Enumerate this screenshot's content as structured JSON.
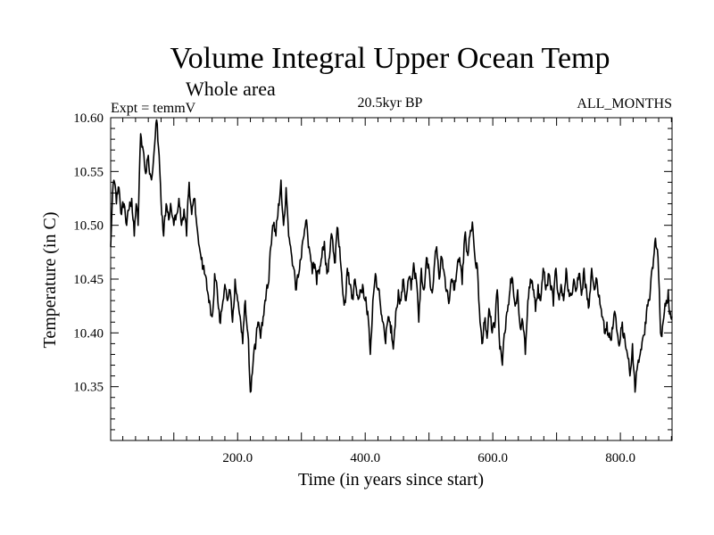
{
  "chart_data": {
    "type": "line",
    "title": "Volume Integral Upper Ocean Temp",
    "subtitle": "Whole area",
    "annotations": {
      "left": "Expt = temmV",
      "center": "20.5kyr BP",
      "right": "ALL_MONTHS"
    },
    "xlabel": "Time (in years since start)",
    "ylabel": "Temperature (in C)",
    "xlim": [
      1,
      881
    ],
    "ylim": [
      10.3,
      10.6
    ],
    "x_ticks": [
      200,
      400,
      600,
      800
    ],
    "x_tick_labels": [
      "200.0",
      "400.0",
      "600.0",
      "800.0"
    ],
    "y_ticks": [
      10.35,
      10.4,
      10.45,
      10.5,
      10.55,
      10.6
    ],
    "y_tick_labels": [
      "10.35",
      "10.40",
      "10.45",
      "10.50",
      "10.55",
      "10.60"
    ],
    "grid": false,
    "series": [
      {
        "name": "Volume Integral Upper Ocean Temp",
        "x_start": 1,
        "x_step": 1,
        "anchors": [
          [
            1,
            10.48
          ],
          [
            4,
            10.53
          ],
          [
            7,
            10.54
          ],
          [
            10,
            10.52
          ],
          [
            14,
            10.535
          ],
          [
            18,
            10.51
          ],
          [
            22,
            10.52
          ],
          [
            26,
            10.5
          ],
          [
            30,
            10.515
          ],
          [
            34,
            10.525
          ],
          [
            38,
            10.49
          ],
          [
            41,
            10.52
          ],
          [
            44,
            10.5
          ],
          [
            48,
            10.585
          ],
          [
            52,
            10.57
          ],
          [
            56,
            10.548
          ],
          [
            60,
            10.565
          ],
          [
            64,
            10.545
          ],
          [
            68,
            10.56
          ],
          [
            73,
            10.598
          ],
          [
            77,
            10.565
          ],
          [
            81,
            10.51
          ],
          [
            84,
            10.49
          ],
          [
            88,
            10.52
          ],
          [
            92,
            10.505
          ],
          [
            96,
            10.515
          ],
          [
            100,
            10.5
          ],
          [
            104,
            10.51
          ],
          [
            108,
            10.525
          ],
          [
            112,
            10.5
          ],
          [
            116,
            10.515
          ],
          [
            120,
            10.49
          ],
          [
            124,
            10.54
          ],
          [
            128,
            10.51
          ],
          [
            132,
            10.525
          ],
          [
            136,
            10.5
          ],
          [
            140,
            10.48
          ],
          [
            144,
            10.47
          ],
          [
            148,
            10.455
          ],
          [
            152,
            10.44
          ],
          [
            156,
            10.43
          ],
          [
            160,
            10.415
          ],
          [
            164,
            10.455
          ],
          [
            168,
            10.44
          ],
          [
            172,
            10.41
          ],
          [
            176,
            10.425
          ],
          [
            180,
            10.445
          ],
          [
            184,
            10.43
          ],
          [
            188,
            10.44
          ],
          [
            192,
            10.41
          ],
          [
            196,
            10.45
          ],
          [
            200,
            10.43
          ],
          [
            204,
            10.415
          ],
          [
            208,
            10.39
          ],
          [
            212,
            10.43
          ],
          [
            216,
            10.4
          ],
          [
            220,
            10.345
          ],
          [
            224,
            10.37
          ],
          [
            228,
            10.385
          ],
          [
            232,
            10.41
          ],
          [
            236,
            10.395
          ],
          [
            240,
            10.415
          ],
          [
            244,
            10.43
          ],
          [
            248,
            10.445
          ],
          [
            252,
            10.48
          ],
          [
            256,
            10.5
          ],
          [
            260,
            10.49
          ],
          [
            264,
            10.52
          ],
          [
            268,
            10.542
          ],
          [
            272,
            10.5
          ],
          [
            276,
            10.535
          ],
          [
            280,
            10.49
          ],
          [
            284,
            10.475
          ],
          [
            288,
            10.46
          ],
          [
            292,
            10.44
          ],
          [
            296,
            10.455
          ],
          [
            300,
            10.47
          ],
          [
            304,
            10.49
          ],
          [
            308,
            10.505
          ],
          [
            312,
            10.48
          ],
          [
            316,
            10.465
          ],
          [
            320,
            10.46
          ],
          [
            324,
            10.445
          ],
          [
            328,
            10.455
          ],
          [
            332,
            10.47
          ],
          [
            336,
            10.485
          ],
          [
            340,
            10.455
          ],
          [
            344,
            10.47
          ],
          [
            348,
            10.49
          ],
          [
            352,
            10.465
          ],
          [
            356,
            10.498
          ],
          [
            360,
            10.48
          ],
          [
            364,
            10.445
          ],
          [
            368,
            10.43
          ],
          [
            372,
            10.46
          ],
          [
            376,
            10.445
          ],
          [
            380,
            10.435
          ],
          [
            384,
            10.45
          ],
          [
            388,
            10.435
          ],
          [
            392,
            10.44
          ],
          [
            396,
            10.445
          ],
          [
            400,
            10.43
          ],
          [
            404,
            10.42
          ],
          [
            408,
            10.38
          ],
          [
            412,
            10.43
          ],
          [
            416,
            10.455
          ],
          [
            420,
            10.44
          ],
          [
            424,
            10.425
          ],
          [
            428,
            10.41
          ],
          [
            432,
            10.39
          ],
          [
            436,
            10.415
          ],
          [
            440,
            10.4
          ],
          [
            444,
            10.385
          ],
          [
            448,
            10.42
          ],
          [
            452,
            10.44
          ],
          [
            456,
            10.43
          ],
          [
            460,
            10.45
          ],
          [
            464,
            10.43
          ],
          [
            468,
            10.45
          ],
          [
            472,
            10.44
          ],
          [
            476,
            10.465
          ],
          [
            480,
            10.45
          ],
          [
            484,
            10.41
          ],
          [
            488,
            10.46
          ],
          [
            492,
            10.44
          ],
          [
            496,
            10.47
          ],
          [
            500,
            10.46
          ],
          [
            504,
            10.44
          ],
          [
            508,
            10.46
          ],
          [
            512,
            10.48
          ],
          [
            516,
            10.45
          ],
          [
            520,
            10.47
          ],
          [
            524,
            10.455
          ],
          [
            528,
            10.44
          ],
          [
            532,
            10.43
          ],
          [
            536,
            10.45
          ],
          [
            540,
            10.44
          ],
          [
            544,
            10.46
          ],
          [
            548,
            10.47
          ],
          [
            552,
            10.445
          ],
          [
            556,
            10.49
          ],
          [
            560,
            10.475
          ],
          [
            564,
            10.49
          ],
          [
            568,
            10.503
          ],
          [
            572,
            10.47
          ],
          [
            576,
            10.46
          ],
          [
            580,
            10.41
          ],
          [
            583,
            10.39
          ],
          [
            587,
            10.41
          ],
          [
            591,
            10.395
          ],
          [
            595,
            10.42
          ],
          [
            599,
            10.4
          ],
          [
            603,
            10.405
          ],
          [
            607,
            10.44
          ],
          [
            611,
            10.385
          ],
          [
            615,
            10.37
          ],
          [
            619,
            10.4
          ],
          [
            623,
            10.42
          ],
          [
            627,
            10.44
          ],
          [
            631,
            10.45
          ],
          [
            635,
            10.425
          ],
          [
            639,
            10.44
          ],
          [
            643,
            10.405
          ],
          [
            647,
            10.41
          ],
          [
            651,
            10.38
          ],
          [
            655,
            10.43
          ],
          [
            659,
            10.45
          ],
          [
            663,
            10.44
          ],
          [
            667,
            10.42
          ],
          [
            671,
            10.445
          ],
          [
            675,
            10.43
          ],
          [
            679,
            10.46
          ],
          [
            683,
            10.44
          ],
          [
            687,
            10.455
          ],
          [
            691,
            10.44
          ],
          [
            695,
            10.425
          ],
          [
            699,
            10.46
          ],
          [
            703,
            10.435
          ],
          [
            707,
            10.445
          ],
          [
            711,
            10.43
          ],
          [
            715,
            10.46
          ],
          [
            719,
            10.44
          ],
          [
            723,
            10.435
          ],
          [
            727,
            10.45
          ],
          [
            731,
            10.44
          ],
          [
            735,
            10.455
          ],
          [
            739,
            10.435
          ],
          [
            743,
            10.46
          ],
          [
            747,
            10.44
          ],
          [
            751,
            10.425
          ],
          [
            755,
            10.46
          ],
          [
            759,
            10.44
          ],
          [
            763,
            10.45
          ],
          [
            767,
            10.435
          ],
          [
            771,
            10.415
          ],
          [
            775,
            10.4
          ],
          [
            779,
            10.41
          ],
          [
            783,
            10.4
          ],
          [
            787,
            10.405
          ],
          [
            791,
            10.42
          ],
          [
            795,
            10.4
          ],
          [
            799,
            10.39
          ],
          [
            803,
            10.41
          ],
          [
            807,
            10.395
          ],
          [
            811,
            10.38
          ],
          [
            815,
            10.36
          ],
          [
            819,
            10.39
          ],
          [
            823,
            10.345
          ],
          [
            827,
            10.37
          ],
          [
            831,
            10.38
          ],
          [
            835,
            10.395
          ],
          [
            839,
            10.41
          ],
          [
            843,
            10.425
          ],
          [
            847,
            10.44
          ],
          [
            851,
            10.46
          ],
          [
            855,
            10.488
          ],
          [
            859,
            10.47
          ],
          [
            863,
            10.4
          ],
          [
            867,
            10.41
          ],
          [
            871,
            10.425
          ],
          [
            875,
            10.44
          ],
          [
            878,
            10.42
          ],
          [
            881,
            10.415
          ]
        ]
      }
    ]
  }
}
